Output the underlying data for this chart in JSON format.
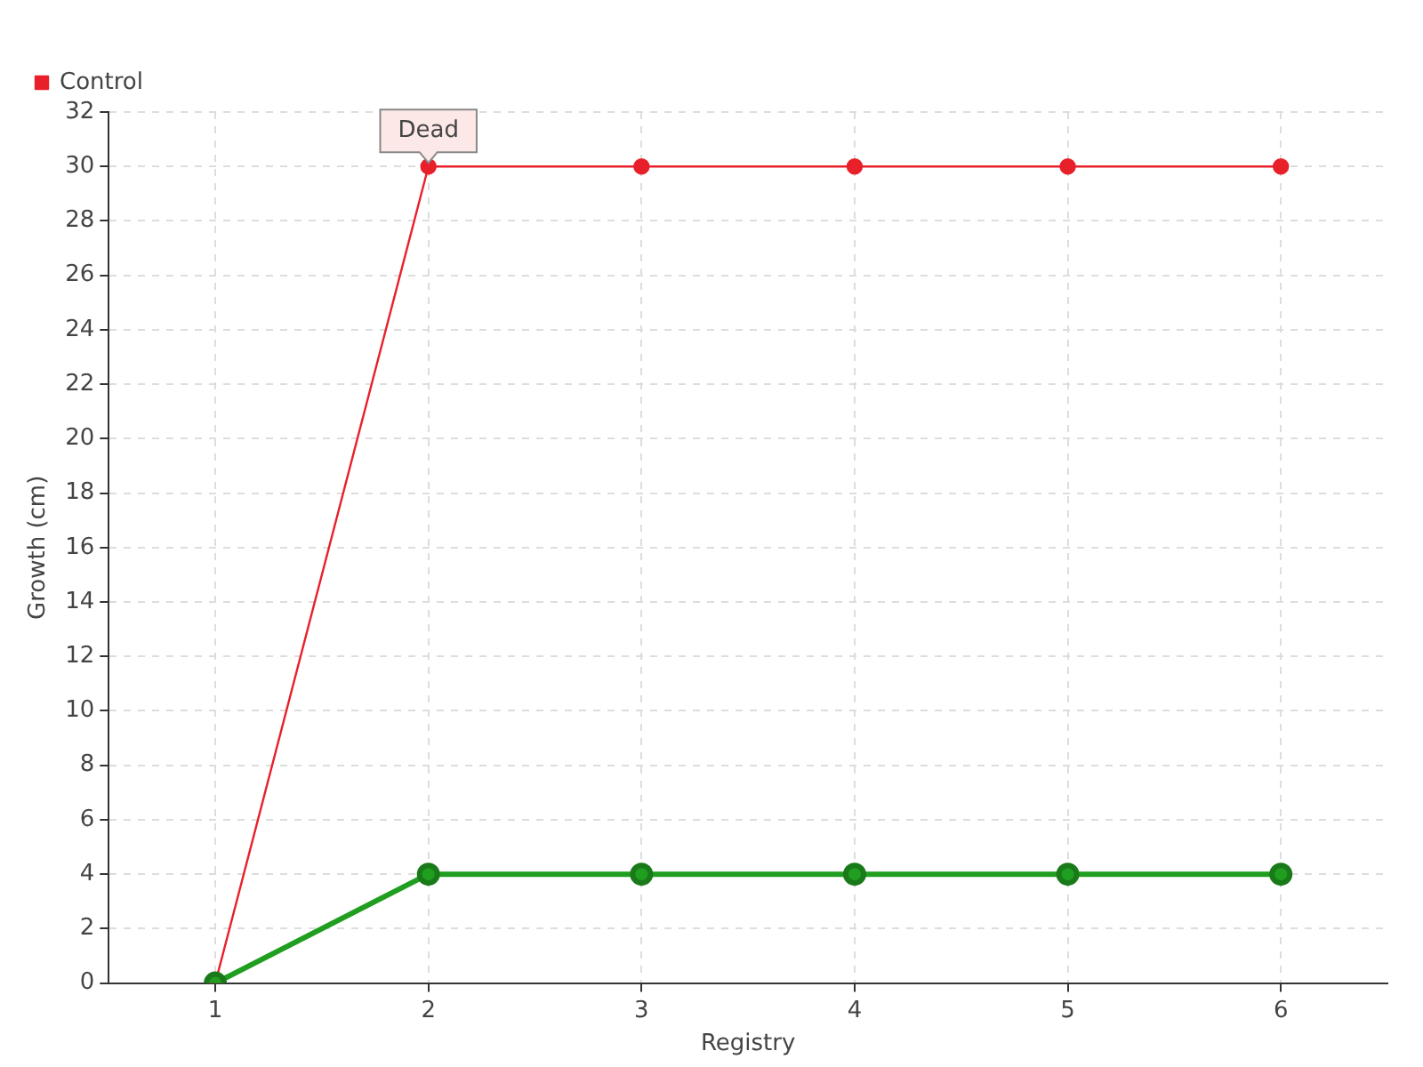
{
  "chart_data": {
    "type": "line",
    "xlabel": "Registry",
    "ylabel": "Growth (cm)",
    "categories": [
      "1",
      "2",
      "3",
      "4",
      "5",
      "6"
    ],
    "series": [
      {
        "color": "#1f9e1f",
        "values": [
          0,
          4,
          4,
          4,
          4,
          4
        ]
      },
      {
        "name": "Control",
        "color": "#e8202a",
        "values": [
          0,
          30,
          30,
          30,
          30,
          30
        ]
      }
    ],
    "ylim": [
      0,
      32
    ],
    "yticks": [
      0,
      2,
      4,
      6,
      8,
      10,
      12,
      14,
      16,
      18,
      20,
      22,
      24,
      26,
      28,
      30,
      32
    ],
    "grid": true,
    "legend": "top left",
    "marker": "circle",
    "line_style": "solid",
    "annotations": [
      {
        "text": "Dead",
        "x": "2",
        "y": 30
      }
    ]
  }
}
